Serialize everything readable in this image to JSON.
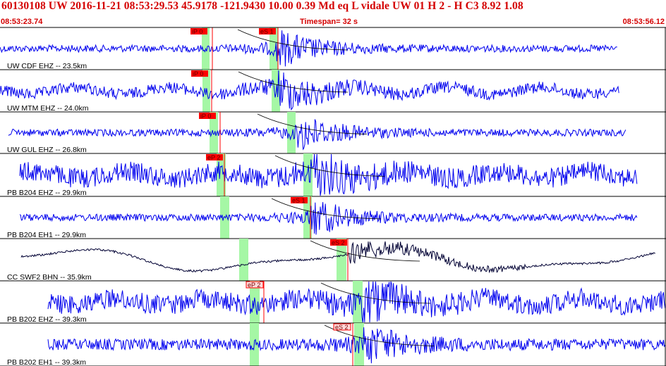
{
  "header": {
    "info": "60130108 UW 2016-11-21 08:53:29.53   45.9178 -121.9430  10.00  0.39 Md  eq  L vidale   UW 01  H   2  -  H C3    8.92  1.08",
    "start_time": "08:53:23.74",
    "timespan": "Timespan=  32 s",
    "end_time": "08:53:56.12"
  },
  "colors": {
    "waveform": "#0000ee",
    "waveform_alt": "#000033",
    "pick": "#ff0000",
    "window": "#a5f7a5",
    "text_red": "#d40000"
  },
  "panels": [
    {
      "label": "UW CDF EHZ -- 23.5km",
      "trace_color": "#0000ee",
      "picks": [
        {
          "label": "iP 0",
          "style": "filled"
        },
        {
          "label": "eS 1",
          "style": "filled"
        }
      ]
    },
    {
      "label": "UW MTM EHZ -- 24.0km",
      "trace_color": "#0000ee",
      "picks": [
        {
          "label": "iP 0",
          "style": "filled"
        }
      ]
    },
    {
      "label": "UW GUL EHZ -- 26.8km",
      "trace_color": "#0000ee",
      "picks": [
        {
          "label": "iP 0",
          "style": "filled"
        }
      ]
    },
    {
      "label": "PB B204 EHZ -- 29.9km",
      "trace_color": "#0000ee",
      "picks": [
        {
          "label": "eP 2",
          "style": "filled"
        }
      ]
    },
    {
      "label": "PB B204 EH1 -- 29.9km",
      "trace_color": "#0000ee",
      "picks": [
        {
          "label": "eS 1",
          "style": "filled"
        }
      ]
    },
    {
      "label": "CC SWF2 BHN -- 35.9km",
      "trace_color": "#000033",
      "picks": [
        {
          "label": "eS 2",
          "style": "filled"
        }
      ]
    },
    {
      "label": "PB B202 EHZ -- 39.3km",
      "trace_color": "#0000ee",
      "picks": [
        {
          "label": "eP 2",
          "style": "outline"
        }
      ]
    },
    {
      "label": "PB B202 EH1 -- 39.3km",
      "trace_color": "#0000ee",
      "picks": [
        {
          "label": "eS 2",
          "style": "outline"
        }
      ]
    }
  ]
}
